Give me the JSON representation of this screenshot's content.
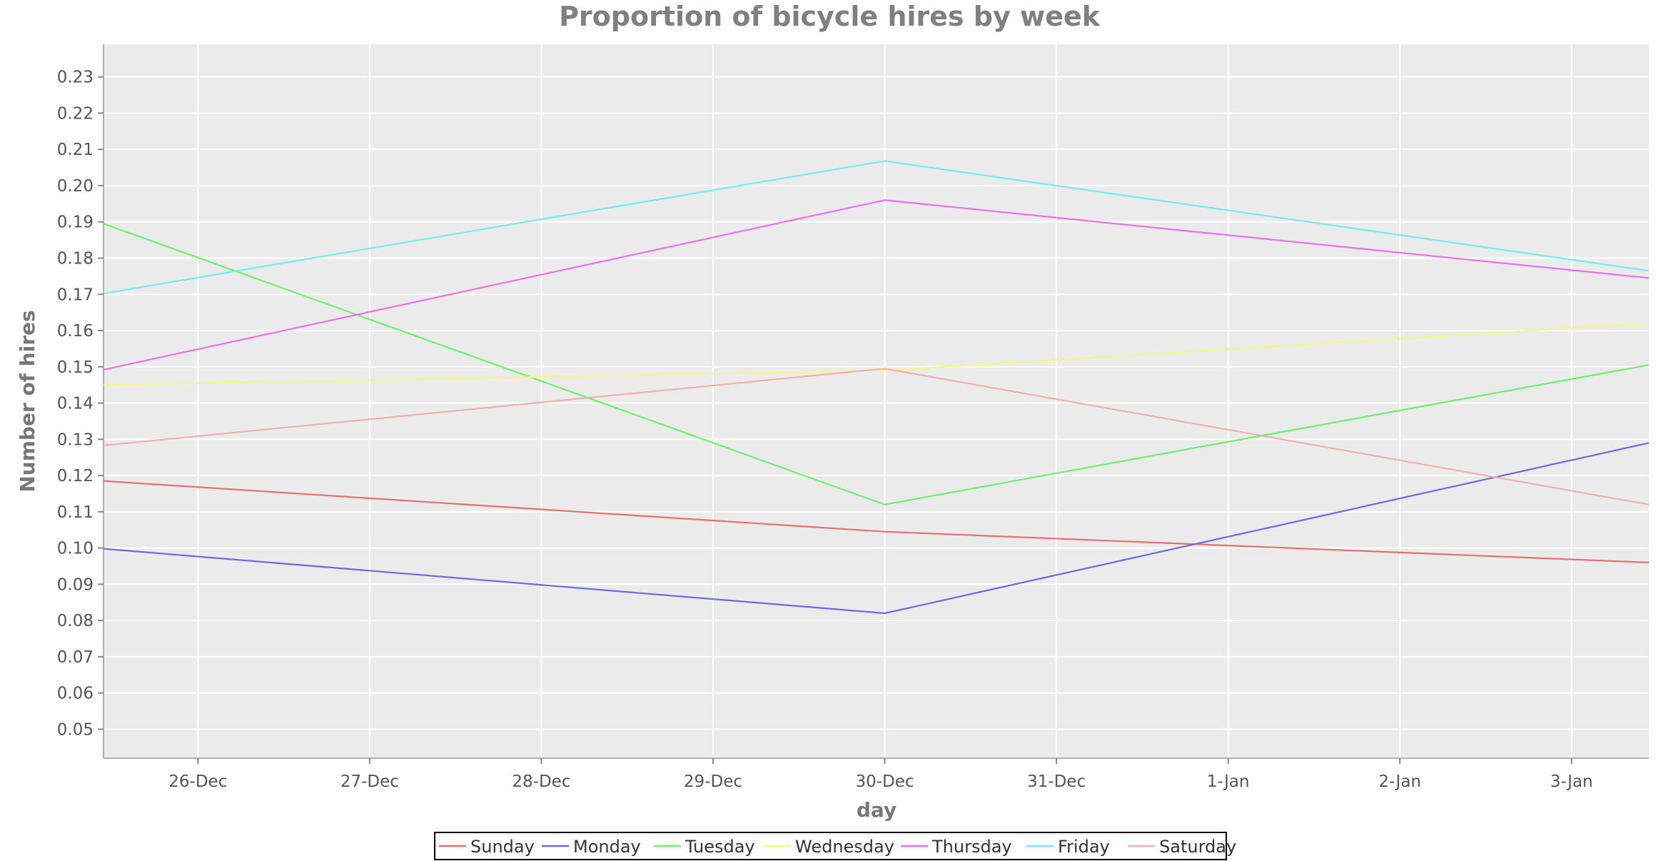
{
  "chart_data": {
    "type": "line",
    "title": "Proportion of bicycle hires by week",
    "xlabel": "day",
    "ylabel": "Number of hires",
    "categories": [
      "26-Dec",
      "27-Dec",
      "28-Dec",
      "29-Dec",
      "30-Dec",
      "31-Dec",
      "1-Jan",
      "2-Jan",
      "3-Jan"
    ],
    "x_range": [
      -0.55,
      8.45
    ],
    "ylim": [
      0.042,
      0.239
    ],
    "y_ticks": [
      "0.05",
      "0.06",
      "0.07",
      "0.08",
      "0.09",
      "0.10",
      "0.11",
      "0.12",
      "0.13",
      "0.14",
      "0.15",
      "0.16",
      "0.17",
      "0.18",
      "0.19",
      "0.20",
      "0.21",
      "0.22",
      "0.23"
    ],
    "grid": true,
    "legend_position": "bottom",
    "series": [
      {
        "name": "Sunday",
        "color": "#e86f6f",
        "points": [
          [
            -0.55,
            0.1185
          ],
          [
            4,
            0.1045
          ],
          [
            8.45,
            0.096
          ]
        ]
      },
      {
        "name": "Monday",
        "color": "#6a6ae6",
        "points": [
          [
            -0.55,
            0.0998
          ],
          [
            4,
            0.082
          ],
          [
            8.45,
            0.129
          ]
        ]
      },
      {
        "name": "Tuesday",
        "color": "#6ef06e",
        "points": [
          [
            -0.55,
            0.1895
          ],
          [
            4,
            0.112
          ],
          [
            8.45,
            0.1505
          ]
        ]
      },
      {
        "name": "Wednesday",
        "color": "#f6f686",
        "points": [
          [
            -0.55,
            0.145
          ],
          [
            4,
            0.149
          ],
          [
            8.45,
            0.162
          ]
        ]
      },
      {
        "name": "Thursday",
        "color": "#ee6eee",
        "points": [
          [
            -0.55,
            0.1492
          ],
          [
            4,
            0.196
          ],
          [
            8.45,
            0.1745
          ]
        ]
      },
      {
        "name": "Friday",
        "color": "#70eeee",
        "points": [
          [
            -0.55,
            0.1702
          ],
          [
            4,
            0.2068
          ],
          [
            8.45,
            0.1765
          ]
        ]
      },
      {
        "name": "Saturday",
        "color": "#f4adad",
        "points": [
          [
            -0.55,
            0.1283
          ],
          [
            4,
            0.1495
          ],
          [
            8.45,
            0.112
          ]
        ]
      }
    ]
  }
}
